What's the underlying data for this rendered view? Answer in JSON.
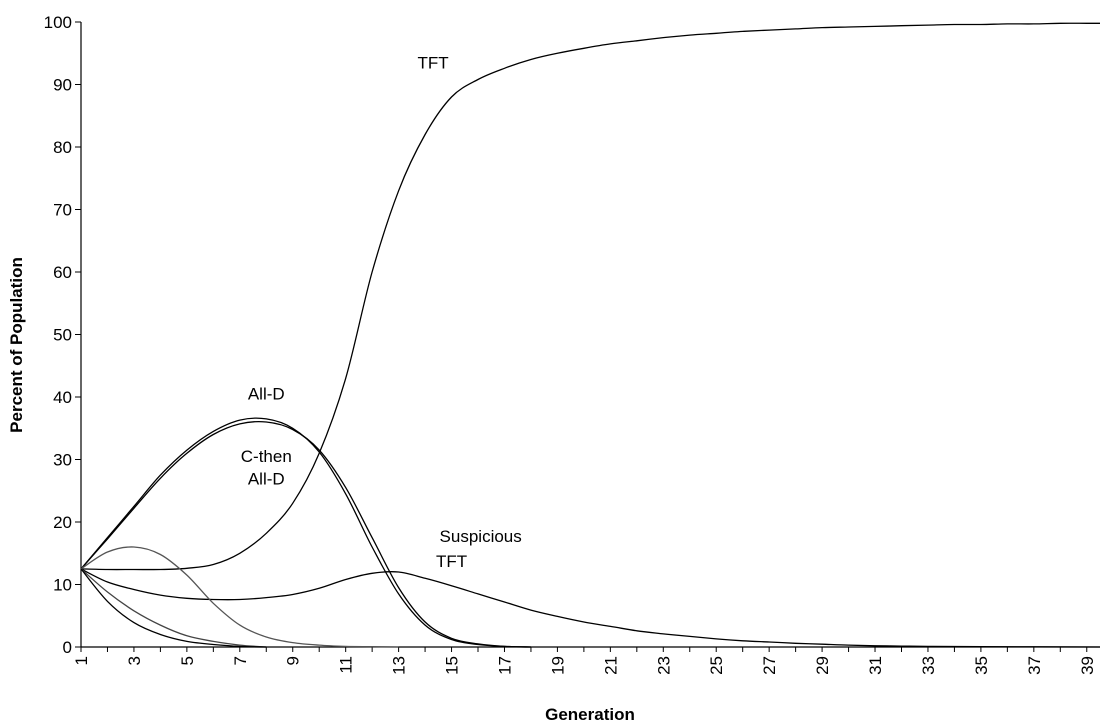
{
  "chart_data": {
    "type": "line",
    "title": "",
    "xlabel": "Generation",
    "ylabel": "Percent of Population",
    "x_ticks": [
      1,
      3,
      5,
      7,
      9,
      11,
      13,
      15,
      17,
      19,
      21,
      23,
      25,
      27,
      29,
      31,
      33,
      35,
      37,
      39
    ],
    "xlim": [
      1,
      39.5
    ],
    "ylim": [
      0,
      100
    ],
    "y_ticks": [
      0,
      10,
      20,
      30,
      40,
      50,
      60,
      70,
      80,
      90,
      100
    ],
    "grid": false,
    "legend": "none",
    "series": [
      {
        "name": "TFT",
        "color": "#000000",
        "x": [
          1,
          2,
          3,
          4,
          5,
          6,
          7,
          8,
          9,
          10,
          11,
          12,
          13,
          14,
          15,
          16,
          17,
          18,
          19,
          20,
          21,
          22,
          23,
          24,
          25,
          26,
          27,
          28,
          29,
          30,
          31,
          32,
          33,
          34,
          35,
          36,
          37,
          38,
          39,
          39.5
        ],
        "y": [
          12.5,
          12.4,
          12.4,
          12.4,
          12.6,
          13.2,
          15,
          18.2,
          23,
          31,
          43,
          60,
          73,
          82,
          88,
          90.8,
          92.6,
          94,
          95,
          95.8,
          96.5,
          97,
          97.5,
          97.9,
          98.2,
          98.5,
          98.7,
          98.9,
          99.1,
          99.2,
          99.3,
          99.4,
          99.5,
          99.6,
          99.6,
          99.7,
          99.7,
          99.8,
          99.8,
          99.8
        ]
      },
      {
        "name": "All-D",
        "color": "#000000",
        "x": [
          1,
          2,
          3,
          4,
          5,
          6,
          7,
          8,
          9,
          10,
          11,
          12,
          13,
          14,
          15,
          16,
          17,
          18
        ],
        "y": [
          12.5,
          17.5,
          22.5,
          27.5,
          31.5,
          34.5,
          36.3,
          36.5,
          35,
          31.2,
          24.5,
          16,
          8.5,
          3.5,
          1.2,
          0.4,
          0.1,
          0
        ]
      },
      {
        "name": "C-then All-D",
        "color": "#000000",
        "x": [
          1,
          2,
          3,
          4,
          5,
          6,
          7,
          8,
          9,
          10,
          11,
          12,
          13,
          14,
          15,
          16,
          17,
          18
        ],
        "y": [
          12.5,
          17.3,
          22.2,
          27,
          31,
          34,
          35.7,
          36,
          34.8,
          31.5,
          25.5,
          17.5,
          9.5,
          4,
          1.4,
          0.5,
          0.1,
          0
        ]
      },
      {
        "name": "Suspicious TFT",
        "color": "#000000",
        "x": [
          1,
          2,
          3,
          4,
          5,
          6,
          7,
          8,
          9,
          10,
          11,
          12,
          13,
          14,
          15,
          16,
          17,
          18,
          19,
          20,
          21,
          22,
          23,
          24,
          25,
          26,
          27,
          28,
          29,
          30,
          31,
          32,
          33,
          35,
          39.5
        ],
        "y": [
          12.5,
          10.4,
          9.2,
          8.3,
          7.8,
          7.6,
          7.6,
          7.9,
          8.4,
          9.4,
          10.8,
          11.8,
          12,
          11,
          9.8,
          8.5,
          7.2,
          5.9,
          4.9,
          4,
          3.3,
          2.6,
          2.1,
          1.7,
          1.3,
          1,
          0.8,
          0.6,
          0.45,
          0.3,
          0.2,
          0.15,
          0.1,
          0.05,
          0
        ]
      },
      {
        "color": "#555555",
        "x": [
          1,
          2,
          3,
          4,
          5,
          6,
          7,
          8,
          9,
          10,
          11,
          12,
          13
        ],
        "y": [
          12.5,
          15.2,
          16,
          14.8,
          11.5,
          7,
          3.5,
          1.6,
          0.7,
          0.3,
          0.1,
          0.05,
          0
        ]
      },
      {
        "color": "#444444",
        "x": [
          1,
          2,
          3,
          4,
          5,
          6,
          7,
          8
        ],
        "y": [
          12.5,
          8.8,
          5.8,
          3.5,
          1.8,
          0.9,
          0.3,
          0
        ]
      },
      {
        "color": "#000000",
        "x": [
          1,
          2,
          3,
          4,
          5,
          6,
          7,
          8
        ],
        "y": [
          12.5,
          7.3,
          3.9,
          2,
          0.9,
          0.4,
          0.1,
          0
        ]
      }
    ],
    "annotations": [
      {
        "text": "TFT",
        "x": 14.3,
        "y": 92.6
      },
      {
        "text": "All-D",
        "x": 8,
        "y": 39.6
      },
      {
        "text": "C-then",
        "x": 8,
        "y": 29.6
      },
      {
        "text": "All-D",
        "x": 8,
        "y": 26.0
      },
      {
        "text": "Suspicious",
        "x": 16.1,
        "y": 16.8
      },
      {
        "text": "TFT",
        "x": 15,
        "y": 12.8
      }
    ]
  }
}
